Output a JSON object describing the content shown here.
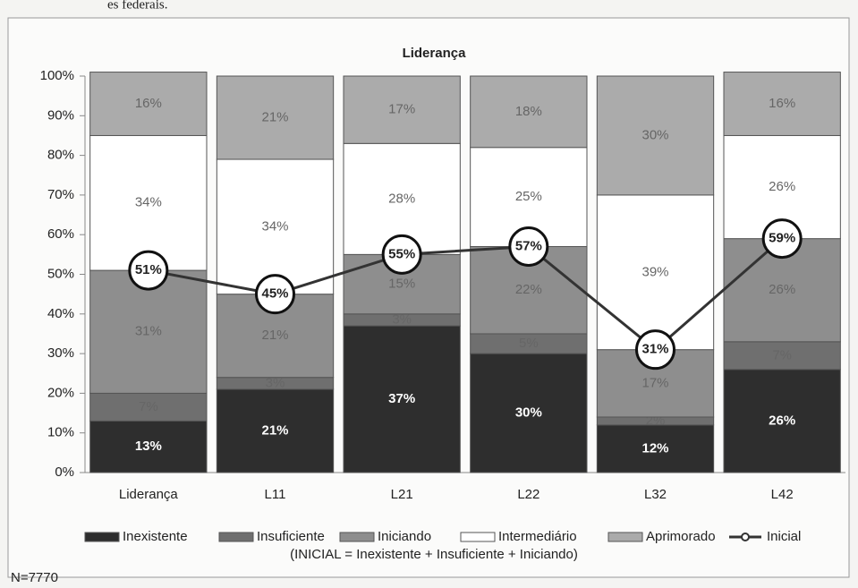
{
  "page_text_top": "es federais.",
  "chart_data": {
    "type": "bar",
    "stacked": true,
    "title": "Liderança",
    "categories": [
      "Liderança",
      "L11",
      "L21",
      "L22",
      "L32",
      "L42"
    ],
    "series": [
      {
        "name": "Inexistente",
        "color": "#2e2e2e",
        "values": [
          13,
          21,
          37,
          30,
          12,
          26
        ],
        "value_labels": [
          "13%",
          "21%",
          "37%",
          "30%",
          "12%",
          "26%"
        ]
      },
      {
        "name": "Insuficiente",
        "color": "#6f6f6f",
        "values": [
          7,
          3,
          3,
          5,
          2,
          7
        ],
        "value_labels": [
          "7%",
          "3%",
          "3%",
          "5%",
          "2%",
          "7%"
        ]
      },
      {
        "name": "Iniciando",
        "color": "#8e8e8e",
        "values": [
          31,
          21,
          15,
          22,
          17,
          26
        ],
        "value_labels": [
          "31%",
          "21%",
          "15%",
          "22%",
          "17%",
          "26%"
        ]
      },
      {
        "name": "Intermediário",
        "color": "#ffffff",
        "values": [
          34,
          34,
          28,
          25,
          39,
          26
        ],
        "value_labels": [
          "34%",
          "34%",
          "28%",
          "25%",
          "39%",
          "26%"
        ]
      },
      {
        "name": "Aprimorado",
        "color": "#ababab",
        "values": [
          16,
          21,
          17,
          18,
          30,
          16
        ],
        "value_labels": [
          "16%",
          "21%",
          "17%",
          "18%",
          "30%",
          "16%"
        ]
      },
      {
        "name": "Inicial",
        "type": "line",
        "color": "#333333",
        "values": [
          51,
          45,
          55,
          57,
          31,
          59
        ],
        "value_labels": [
          "51%",
          "45%",
          "55%",
          "57%",
          "31%",
          "59%"
        ]
      }
    ],
    "ylim": [
      0,
      100
    ],
    "yticks": [
      {
        "value": 0,
        "label": "0%"
      },
      {
        "value": 10,
        "label": "10%"
      },
      {
        "value": 20,
        "label": "20%"
      },
      {
        "value": 30,
        "label": "30%"
      },
      {
        "value": 40,
        "label": "40%"
      },
      {
        "value": 50,
        "label": "50%"
      },
      {
        "value": 60,
        "label": "60%"
      },
      {
        "value": 70,
        "label": "70%"
      },
      {
        "value": 80,
        "label": "80%"
      },
      {
        "value": 90,
        "label": "90%"
      },
      {
        "value": 100,
        "label": "100%"
      }
    ],
    "legend": "bottom",
    "note": "(INICIAL = Inexistente + Insuficiente + Iniciando)",
    "footnote": "N=7770"
  }
}
